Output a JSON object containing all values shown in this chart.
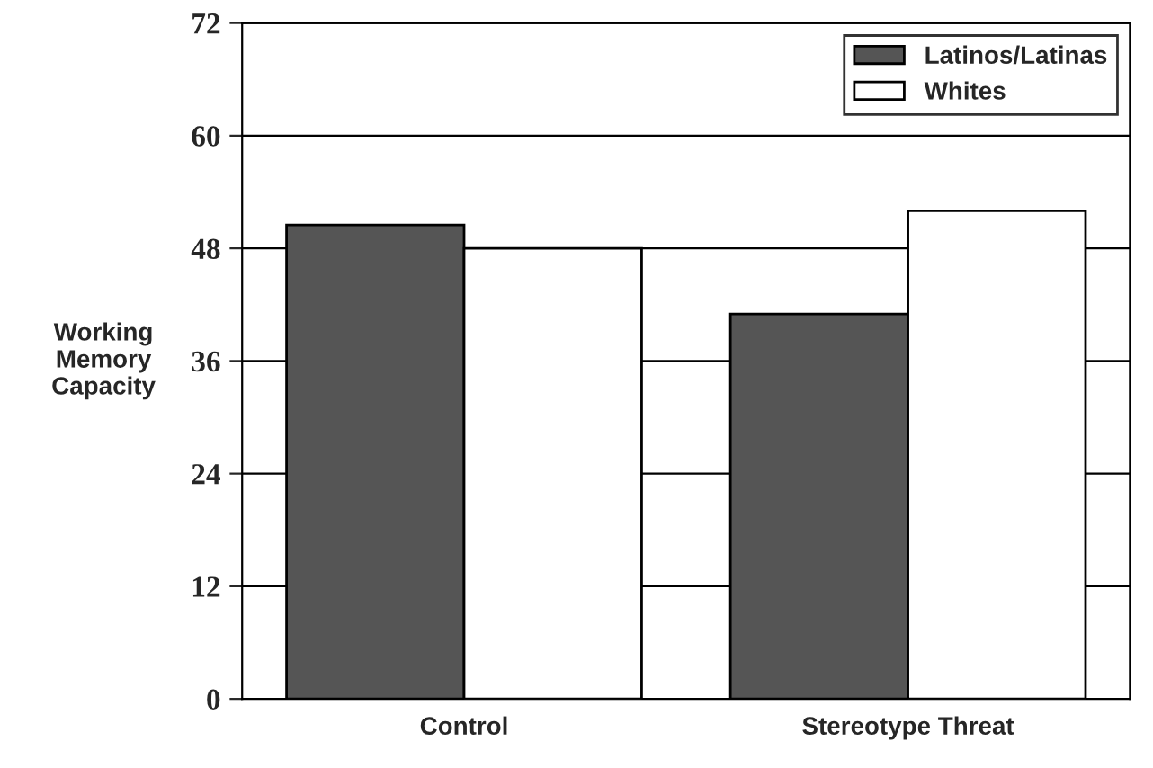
{
  "chart_data": {
    "type": "bar",
    "ylabel": "Working\nMemory\nCapacity",
    "categories": [
      "Control",
      "Stereotype Threat"
    ],
    "series": [
      {
        "name": "Latinos/Latinas",
        "color": "#555555",
        "values": [
          50.5,
          41
        ]
      },
      {
        "name": "Whites",
        "color": "#ffffff",
        "values": [
          48,
          52
        ]
      }
    ],
    "ylim": [
      0,
      72
    ],
    "yticks": [
      0,
      12,
      24,
      36,
      48,
      60,
      72
    ],
    "grid": "y",
    "legend": "top right"
  }
}
